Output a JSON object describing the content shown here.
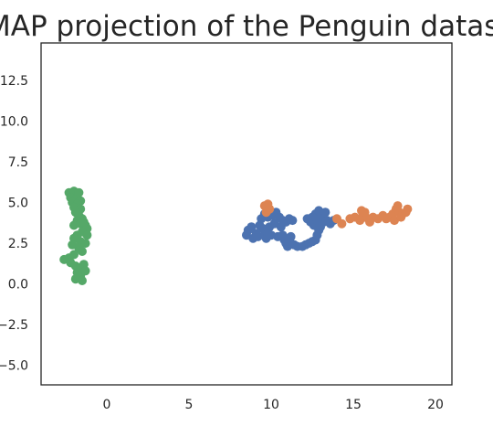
{
  "chart_data": {
    "type": "scatter",
    "title": "UMAP projection of the Penguin dataset",
    "xlabel": "",
    "ylabel": "",
    "xlim": [
      -4,
      21
    ],
    "ylim": [
      -6.2,
      14.8
    ],
    "xticks": [
      "0",
      "5",
      "10",
      "15",
      "20"
    ],
    "xtick_values": [
      0,
      5,
      10,
      15,
      20
    ],
    "yticks": [
      "12.5",
      "10.0",
      "7.5",
      "5.0",
      "2.5",
      "0.0",
      "−2.5",
      "−5.0"
    ],
    "ytick_values": [
      12.5,
      10.0,
      7.5,
      5.0,
      2.5,
      0.0,
      -2.5,
      -5.0
    ],
    "grid": false,
    "series": [
      {
        "color": "#4c72b0",
        "points": [
          [
            8.5,
            3.0
          ],
          [
            8.6,
            3.3
          ],
          [
            8.8,
            3.5
          ],
          [
            8.9,
            2.8
          ],
          [
            9.1,
            3.1
          ],
          [
            9.2,
            2.9
          ],
          [
            9.3,
            3.6
          ],
          [
            9.4,
            4.0
          ],
          [
            9.5,
            3.4
          ],
          [
            9.6,
            3.0
          ],
          [
            9.7,
            2.8
          ],
          [
            9.8,
            3.1
          ],
          [
            9.9,
            3.5
          ],
          [
            10.0,
            3.0
          ],
          [
            9.6,
            4.3
          ],
          [
            9.8,
            4.1
          ],
          [
            10.1,
            4.2
          ],
          [
            10.3,
            4.4
          ],
          [
            10.5,
            4.1
          ],
          [
            10.7,
            3.9
          ],
          [
            10.9,
            3.8
          ],
          [
            11.1,
            4.0
          ],
          [
            11.3,
            3.9
          ],
          [
            10.6,
            3.5
          ],
          [
            10.7,
            3.0
          ],
          [
            10.8,
            2.7
          ],
          [
            10.9,
            2.5
          ],
          [
            11.0,
            2.3
          ],
          [
            11.2,
            2.5
          ],
          [
            11.4,
            2.4
          ],
          [
            11.6,
            2.3
          ],
          [
            11.9,
            2.3
          ],
          [
            12.1,
            2.4
          ],
          [
            12.3,
            2.5
          ],
          [
            12.5,
            2.6
          ],
          [
            12.7,
            2.7
          ],
          [
            12.8,
            3.0
          ],
          [
            12.9,
            3.3
          ],
          [
            13.0,
            3.5
          ],
          [
            13.2,
            3.8
          ],
          [
            12.9,
            4.1
          ],
          [
            12.7,
            4.3
          ],
          [
            12.5,
            4.1
          ],
          [
            12.4,
            3.8
          ],
          [
            12.6,
            3.6
          ],
          [
            12.8,
            3.9
          ],
          [
            13.1,
            4.2
          ],
          [
            13.4,
            3.9
          ],
          [
            13.6,
            3.7
          ],
          [
            13.8,
            3.9
          ],
          [
            13.3,
            4.4
          ],
          [
            12.9,
            4.5
          ],
          [
            11.2,
            2.9
          ],
          [
            10.2,
            3.7
          ],
          [
            12.2,
            4.0
          ],
          [
            10.4,
            2.9
          ]
        ]
      },
      {
        "color": "#dd8452",
        "points": [
          [
            9.6,
            4.8
          ],
          [
            9.8,
            4.9
          ],
          [
            9.9,
            4.6
          ],
          [
            9.7,
            4.4
          ],
          [
            14.0,
            4.0
          ],
          [
            14.3,
            3.7
          ],
          [
            14.8,
            4.0
          ],
          [
            15.1,
            4.1
          ],
          [
            15.4,
            3.9
          ],
          [
            15.6,
            4.2
          ],
          [
            15.7,
            4.4
          ],
          [
            15.9,
            4.0
          ],
          [
            16.2,
            4.1
          ],
          [
            16.5,
            4.0
          ],
          [
            16.8,
            4.2
          ],
          [
            17.0,
            4.0
          ],
          [
            17.2,
            4.1
          ],
          [
            17.4,
            4.3
          ],
          [
            17.6,
            4.6
          ],
          [
            17.8,
            4.4
          ],
          [
            18.0,
            4.3
          ],
          [
            18.2,
            4.4
          ],
          [
            18.3,
            4.6
          ],
          [
            17.5,
            3.9
          ],
          [
            17.9,
            4.1
          ],
          [
            16.0,
            3.8
          ],
          [
            15.5,
            4.5
          ],
          [
            17.7,
            4.8
          ]
        ]
      },
      {
        "color": "#55a868",
        "points": [
          [
            -2.3,
            5.6
          ],
          [
            -2.0,
            5.7
          ],
          [
            -1.7,
            5.6
          ],
          [
            -2.2,
            5.3
          ],
          [
            -1.9,
            5.2
          ],
          [
            -1.6,
            5.1
          ],
          [
            -2.1,
            5.0
          ],
          [
            -1.8,
            4.9
          ],
          [
            -2.0,
            4.7
          ],
          [
            -1.6,
            4.6
          ],
          [
            -1.9,
            4.4
          ],
          [
            -1.7,
            4.2
          ],
          [
            -1.5,
            4.0
          ],
          [
            -1.8,
            3.9
          ],
          [
            -2.0,
            3.6
          ],
          [
            -1.6,
            3.7
          ],
          [
            -1.3,
            3.6
          ],
          [
            -1.2,
            3.4
          ],
          [
            -1.5,
            3.2
          ],
          [
            -1.8,
            3.0
          ],
          [
            -2.0,
            2.8
          ],
          [
            -1.6,
            2.6
          ],
          [
            -1.3,
            2.5
          ],
          [
            -1.7,
            2.2
          ],
          [
            -1.5,
            2.0
          ],
          [
            -2.0,
            1.8
          ],
          [
            -2.3,
            1.6
          ],
          [
            -2.6,
            1.5
          ],
          [
            -2.2,
            1.3
          ],
          [
            -1.9,
            1.1
          ],
          [
            -1.6,
            1.0
          ],
          [
            -1.4,
            1.2
          ],
          [
            -1.3,
            0.8
          ],
          [
            -1.6,
            0.5
          ],
          [
            -1.9,
            0.3
          ],
          [
            -1.5,
            0.2
          ],
          [
            -1.2,
            3.0
          ],
          [
            -1.4,
            3.8
          ],
          [
            -2.1,
            2.4
          ],
          [
            -1.8,
            0.7
          ]
        ]
      }
    ]
  }
}
